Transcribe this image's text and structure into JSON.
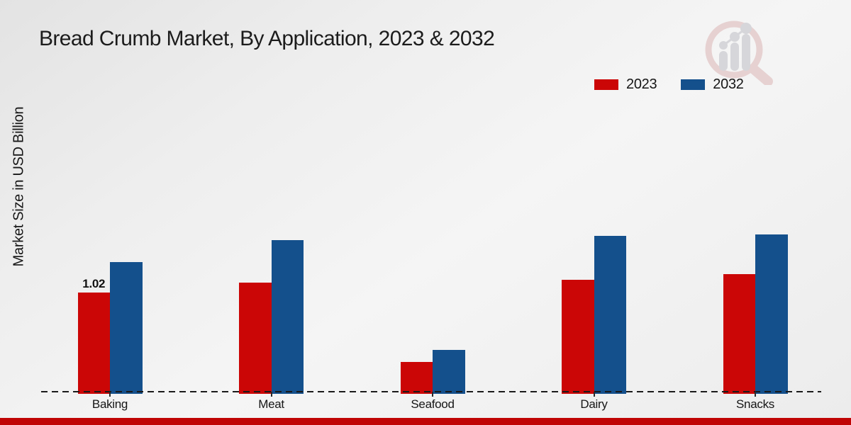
{
  "title": "Bread Crumb Market, By Application, 2023 & 2032",
  "ylabel": "Market Size in USD Billion",
  "legend": {
    "items": [
      {
        "label": "2023",
        "color": "#cb0606"
      },
      {
        "label": "2032",
        "color": "#14508c"
      }
    ]
  },
  "watermark_icon": "magnifier-bar-chart-logo",
  "colors": {
    "series_2023": "#cb0606",
    "series_2032": "#14508c",
    "bottom_band": "#c00404",
    "axis": "#1a1a1a",
    "text": "#1c1c1c"
  },
  "chart_data": {
    "type": "bar",
    "title": "Bread Crumb Market, By Application, 2023 & 2032",
    "categories": [
      "Baking",
      "Meat",
      "Seafood",
      "Dairy",
      "Snacks"
    ],
    "series": [
      {
        "name": "2023",
        "color": "#cb0606",
        "values": [
          1.02,
          1.12,
          0.32,
          1.15,
          1.21
        ]
      },
      {
        "name": "2032",
        "color": "#14508c",
        "values": [
          1.33,
          1.55,
          0.44,
          1.59,
          1.61
        ]
      }
    ],
    "xlabel": "",
    "ylabel": "Market Size in USD Billion",
    "ylim": [
      0,
      1.75
    ],
    "grid": false,
    "axis_style": "dashed-baseline-only",
    "legend_position": "top-right",
    "data_labels": [
      {
        "category": "Baking",
        "series": "2023",
        "text": "1.02"
      }
    ]
  }
}
